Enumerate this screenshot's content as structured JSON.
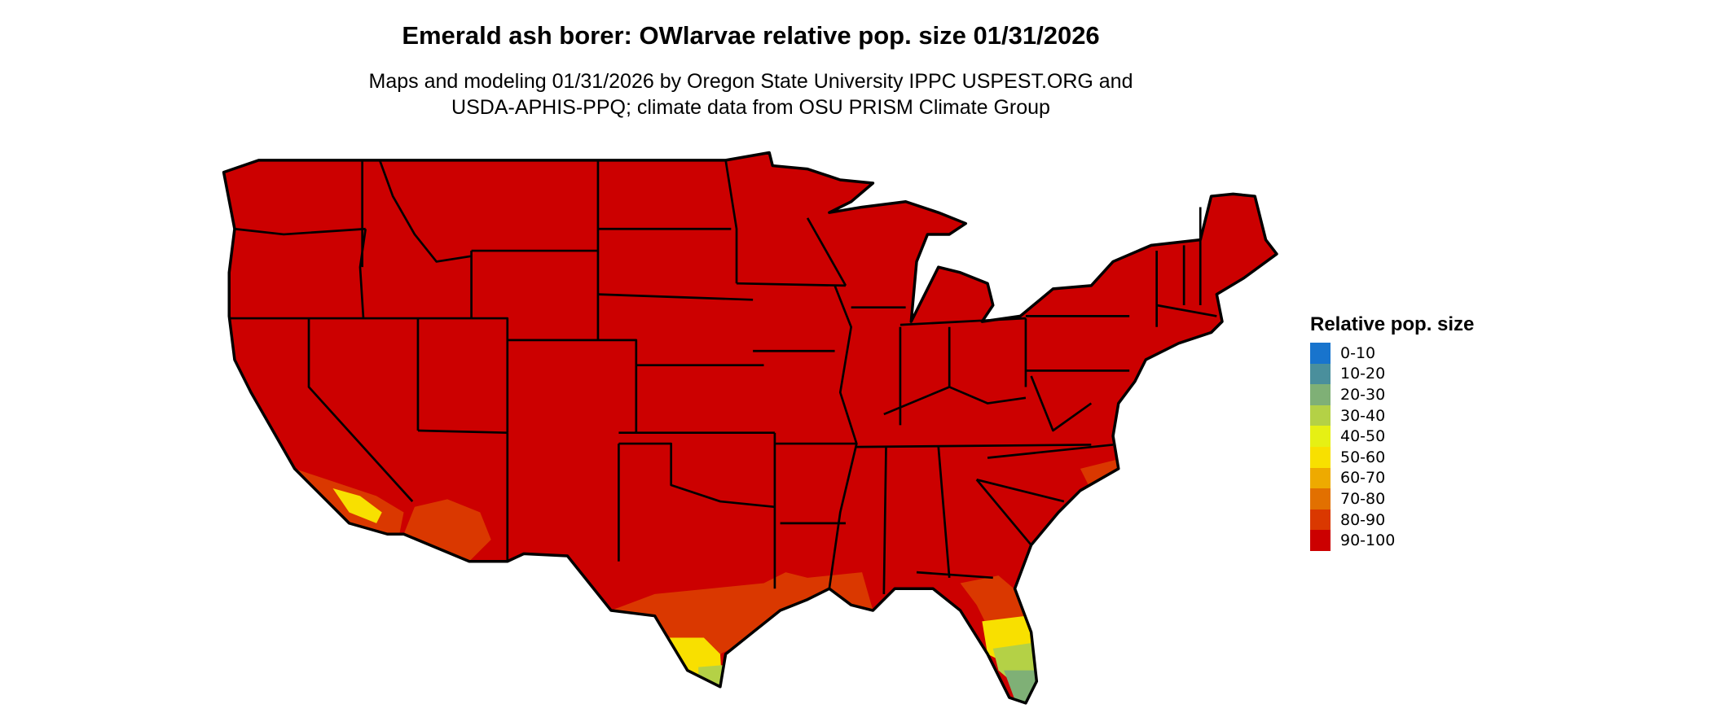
{
  "title": "Emerald ash borer: OWlarvae relative pop. size 01/31/2026",
  "subtitle_line1": "Maps and modeling 01/31/2026 by Oregon State University IPPC USPEST.ORG and",
  "subtitle_line2": "USDA-APHIS-PPQ; climate data from OSU PRISM Climate Group",
  "chart_data": {
    "type": "heatmap",
    "region": "conterminous United States",
    "legend": {
      "title": "Relative pop. size",
      "placement": "right",
      "bins": [
        {
          "label": "0-10",
          "color": "#1874CD"
        },
        {
          "label": "10-20",
          "color": "#4A8F9C"
        },
        {
          "label": "20-30",
          "color": "#7FB076"
        },
        {
          "label": "30-40",
          "color": "#B4D146"
        },
        {
          "label": "40-50",
          "color": "#E6F014"
        },
        {
          "label": "50-60",
          "color": "#F8E000"
        },
        {
          "label": "60-70",
          "color": "#EEAA00"
        },
        {
          "label": "70-80",
          "color": "#E27000"
        },
        {
          "label": "80-90",
          "color": "#DA3800"
        },
        {
          "label": "90-100",
          "color": "#CC0000"
        }
      ]
    },
    "dominant_bin": "90-100"
  }
}
